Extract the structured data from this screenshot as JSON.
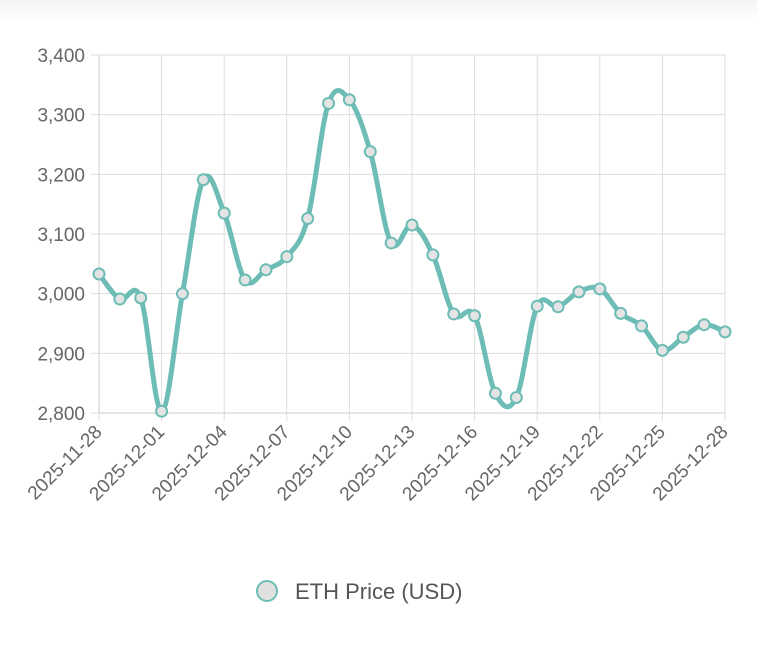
{
  "chart_data": {
    "type": "line",
    "title": "",
    "xlabel": "",
    "ylabel": "",
    "ylim": [
      2800,
      3400
    ],
    "yticks": [
      2800,
      2900,
      3000,
      3100,
      3200,
      3300,
      3400
    ],
    "ytick_labels": [
      "2,800",
      "2,900",
      "3,000",
      "3,100",
      "3,200",
      "3,300",
      "3,400"
    ],
    "xtick_labels": [
      "2025-11-28",
      "2025-12-01",
      "2025-12-04",
      "2025-12-07",
      "2025-12-10",
      "2025-12-13",
      "2025-12-16",
      "2025-12-19",
      "2025-12-22",
      "2025-12-25",
      "2025-12-28"
    ],
    "grid": true,
    "legend": "bottom-center",
    "series": [
      {
        "name": "ETH Price (USD)",
        "color": "#6dbdb6",
        "x": [
          "2025-11-28",
          "2025-11-29",
          "2025-11-30",
          "2025-12-01",
          "2025-12-02",
          "2025-12-03",
          "2025-12-04",
          "2025-12-05",
          "2025-12-06",
          "2025-12-07",
          "2025-12-08",
          "2025-12-09",
          "2025-12-10",
          "2025-12-11",
          "2025-12-12",
          "2025-12-13",
          "2025-12-14",
          "2025-12-15",
          "2025-12-16",
          "2025-12-17",
          "2025-12-18",
          "2025-12-19",
          "2025-12-20",
          "2025-12-21",
          "2025-12-22",
          "2025-12-23",
          "2025-12-24",
          "2025-12-25",
          "2025-12-26",
          "2025-12-27",
          "2025-12-28"
        ],
        "values": [
          3033,
          2991,
          2993,
          2803,
          3000,
          3191,
          3135,
          3023,
          3040,
          3062,
          3126,
          3319,
          3325,
          3238,
          3085,
          3115,
          3065,
          2966,
          2963,
          2833,
          2826,
          2979,
          2978,
          3003,
          3008,
          2967,
          2946,
          2905,
          2927,
          2948,
          2936
        ]
      }
    ]
  }
}
